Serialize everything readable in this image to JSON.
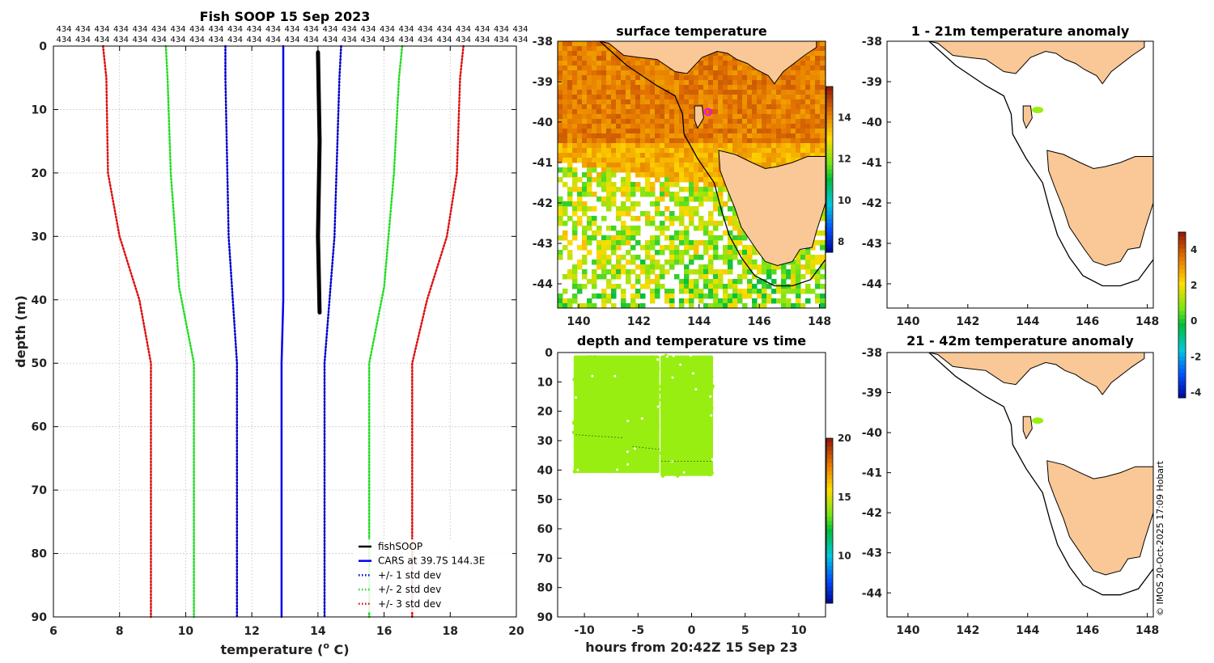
{
  "figure_note": "© IMOS 20-Oct-2025 17:09 Hobart",
  "colors": {
    "land": "#f9c896",
    "coast": "#000000",
    "grid": "#cccccc",
    "fish": "#000000",
    "cars": "#0000ee",
    "sd1": "#0000cc",
    "sd2": "#22dd22",
    "sd3": "#dd1111",
    "obs_dot": "#99ee11"
  },
  "chart_data": [
    {
      "id": "profile",
      "type": "line",
      "title": "Fish SOOP 15 Sep 2023",
      "xlabel": "temperature (o C)",
      "xlabel_base": "temperature (",
      "xlabel_sup": "o",
      "xlabel_tail": " C)",
      "ylabel": "depth (m)",
      "xlim": [
        6,
        20
      ],
      "ylim": [
        0,
        90
      ],
      "xticks": [
        "6",
        "8",
        "10",
        "12",
        "14",
        "16",
        "18",
        "20"
      ],
      "yticks": [
        "0",
        "10",
        "20",
        "30",
        "40",
        "50",
        "60",
        "70",
        "80",
        "90"
      ],
      "count_label": "434",
      "count_repeats": 25,
      "series": [
        {
          "name": "fishSOOP",
          "style": "solid",
          "color": "#000000",
          "width": 5,
          "points": [
            [
              14.0,
              1
            ],
            [
              14.05,
              15
            ],
            [
              14.0,
              30
            ],
            [
              14.05,
              42
            ]
          ]
        },
        {
          "name": "CARS at 39.7S 144.3E",
          "style": "solid",
          "color": "#0000ee",
          "width": 2.5,
          "points": [
            [
              12.95,
              0
            ],
            [
              12.95,
              5
            ],
            [
              12.95,
              20
            ],
            [
              12.95,
              40
            ],
            [
              12.9,
              50
            ],
            [
              12.9,
              90
            ]
          ]
        },
        {
          "name": "+/- 1 std dev",
          "style": "dotted",
          "color": "#0000cc",
          "width": 2.5,
          "points": [
            [
              11.2,
              0
            ],
            [
              11.2,
              5
            ],
            [
              11.3,
              30
            ],
            [
              11.55,
              50
            ],
            [
              11.55,
              90
            ]
          ]
        },
        {
          "name": "+/- 1 std dev",
          "style": "dotted",
          "color": "#0000cc",
          "width": 2.5,
          "points": [
            [
              14.7,
              0
            ],
            [
              14.65,
              5
            ],
            [
              14.5,
              30
            ],
            [
              14.2,
              50
            ],
            [
              14.2,
              90
            ]
          ]
        },
        {
          "name": "+/- 2 std dev",
          "style": "dotted",
          "color": "#22dd22",
          "width": 2.5,
          "points": [
            [
              9.4,
              0
            ],
            [
              9.45,
              5
            ],
            [
              9.55,
              20
            ],
            [
              9.8,
              38
            ],
            [
              10.25,
              50
            ],
            [
              10.25,
              90
            ]
          ]
        },
        {
          "name": "+/- 2 std dev",
          "style": "dotted",
          "color": "#22dd22",
          "width": 2.5,
          "points": [
            [
              16.55,
              0
            ],
            [
              16.45,
              5
            ],
            [
              16.3,
              20
            ],
            [
              16.0,
              38
            ],
            [
              15.55,
              50
            ],
            [
              15.55,
              90
            ]
          ]
        },
        {
          "name": "+/- 3 std dev",
          "style": "dotted",
          "color": "#dd1111",
          "width": 2.5,
          "points": [
            [
              7.5,
              0
            ],
            [
              7.6,
              5
            ],
            [
              7.65,
              20
            ],
            [
              8.0,
              30
            ],
            [
              8.6,
              40
            ],
            [
              8.95,
              50
            ],
            [
              8.95,
              90
            ]
          ]
        },
        {
          "name": "+/- 3 std dev",
          "style": "dotted",
          "color": "#dd1111",
          "width": 2.5,
          "points": [
            [
              18.4,
              0
            ],
            [
              18.3,
              5
            ],
            [
              18.2,
              20
            ],
            [
              17.9,
              30
            ],
            [
              17.3,
              40
            ],
            [
              16.85,
              50
            ],
            [
              16.85,
              90
            ]
          ]
        }
      ],
      "legend": [
        {
          "label": "fishSOOP",
          "color": "#000000",
          "style": "solid"
        },
        {
          "label": "CARS at 39.7S 144.3E",
          "color": "#0000ee",
          "style": "solid"
        },
        {
          "label": "+/- 1 std dev",
          "color": "#0000cc",
          "style": "dotted"
        },
        {
          "label": "+/- 2 std dev",
          "color": "#22dd22",
          "style": "dotted"
        },
        {
          "label": "+/- 3 std dev",
          "color": "#dd1111",
          "style": "dotted"
        }
      ],
      "legend_position": "bottom-right"
    },
    {
      "id": "sst",
      "type": "heatmap",
      "title": "surface temperature",
      "xlim": [
        139.3,
        148.2
      ],
      "ylim": [
        -44.6,
        -38
      ],
      "xticks": [
        "140",
        "142",
        "144",
        "146",
        "148"
      ],
      "yticks": [
        "-38",
        "-39",
        "-40",
        "-41",
        "-42",
        "-43",
        "-44"
      ],
      "colorbar_ticks": [
        "8",
        "10",
        "12",
        "14"
      ],
      "colorbar_range": [
        7.5,
        15.5
      ],
      "marker": {
        "lon": 144.3,
        "lat": -39.75,
        "color": "#ff00ff"
      }
    },
    {
      "id": "anom1",
      "type": "heatmap",
      "title": "1 - 21m temperature anomaly",
      "xlim": [
        139.3,
        148.2
      ],
      "ylim": [
        -44.6,
        -38
      ],
      "xticks": [
        "140",
        "142",
        "144",
        "146",
        "148"
      ],
      "yticks": [
        "-38",
        "-39",
        "-40",
        "-41",
        "-42",
        "-43",
        "-44"
      ],
      "obs": {
        "lon": 144.2,
        "lat": -39.7,
        "value": 1.2
      }
    },
    {
      "id": "anom2",
      "type": "heatmap",
      "title": "21 - 42m temperature anomaly",
      "xlim": [
        139.3,
        148.2
      ],
      "ylim": [
        -44.6,
        -38
      ],
      "xticks": [
        "140",
        "142",
        "144",
        "146",
        "148"
      ],
      "yticks": [
        "-38",
        "-39",
        "-40",
        "-41",
        "-42",
        "-43",
        "-44"
      ],
      "obs": {
        "lon": 144.2,
        "lat": -39.7,
        "value": 1.2
      }
    },
    {
      "id": "anom_colorbar",
      "type": "heatmap",
      "colorbar_ticks": [
        "4",
        "2",
        "0",
        "-2",
        "-4"
      ],
      "colorbar_range": [
        -4.3,
        5
      ]
    },
    {
      "id": "timeseries",
      "type": "scatter",
      "title": "depth and temperature vs time",
      "xlabel": "hours from 20:42Z 15 Sep 23",
      "xlim": [
        -12.5,
        12.5
      ],
      "ylim": [
        0,
        90
      ],
      "xticks": [
        "-10",
        "-5",
        "0",
        "5",
        "10"
      ],
      "yticks": [
        "0",
        "10",
        "20",
        "30",
        "40",
        "50",
        "60",
        "70",
        "80",
        "90"
      ],
      "colorbar_ticks": [
        "10",
        "15",
        "20"
      ],
      "colorbar_range": [
        6,
        20
      ],
      "point_temperature": 14.0,
      "blocks": [
        {
          "t0": -11.0,
          "t1": -3.0,
          "d0": 1,
          "d1": 41
        },
        {
          "t0": -2.9,
          "t1": 2.0,
          "d0": 1,
          "d1": 42
        }
      ],
      "dive_traces": [
        {
          "t0": -10.8,
          "t1": -6.5,
          "d0": 28,
          "d1": 29
        },
        {
          "t0": -5.5,
          "t1": -2.9,
          "d0": 32,
          "d1": 33
        },
        {
          "t0": -2.8,
          "t1": 2.0,
          "d0": 37,
          "d1": 37
        }
      ]
    }
  ]
}
